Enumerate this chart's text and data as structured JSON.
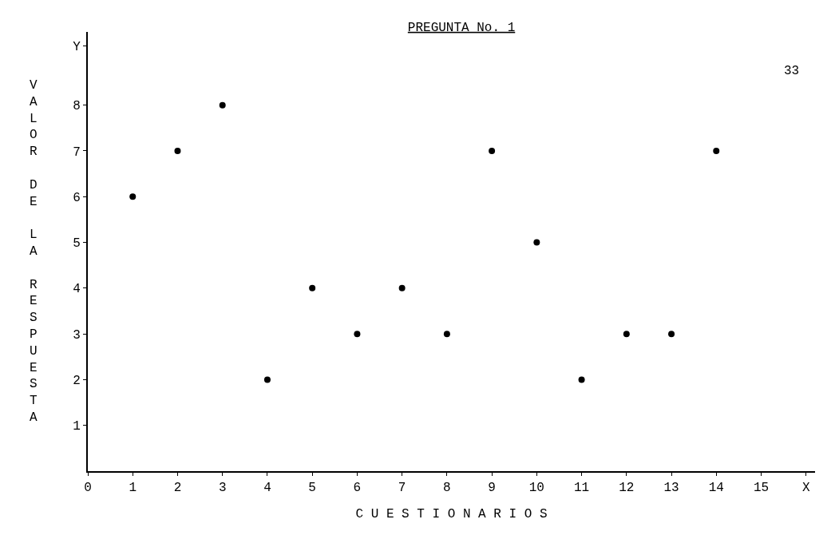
{
  "chart_data": {
    "type": "scatter",
    "title": "PREGUNTA No. 1",
    "xlabel": "C U E S T I O N A R I O S",
    "ylabel": "VALOR DE LA RESPUESTA",
    "annotations": [
      "33"
    ],
    "x": [
      1,
      2,
      3,
      4,
      5,
      6,
      7,
      8,
      9,
      10,
      11,
      12,
      13,
      14
    ],
    "series": [
      {
        "color": "#000000",
        "values": [
          6,
          7,
          8,
          2,
          4,
          3,
          4,
          3,
          7,
          5,
          2,
          3,
          3,
          7
        ]
      }
    ],
    "xlim": [
      0,
      16.2
    ],
    "ylim": [
      0,
      9.6
    ],
    "xticks": [
      0,
      1,
      2,
      3,
      4,
      5,
      6,
      7,
      8,
      9,
      10,
      11,
      12,
      13,
      14,
      15,
      {
        "value": 16,
        "label": "X"
      }
    ],
    "yticks": [
      1,
      2,
      3,
      4,
      5,
      6,
      7,
      8,
      {
        "value": 9.3,
        "label": "Y"
      }
    ],
    "marker": "circle",
    "legend": false
  }
}
